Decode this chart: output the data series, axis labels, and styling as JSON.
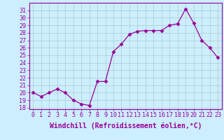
{
  "x": [
    0,
    1,
    2,
    3,
    4,
    5,
    6,
    7,
    8,
    9,
    10,
    11,
    12,
    13,
    14,
    15,
    16,
    17,
    18,
    19,
    20,
    21,
    22,
    23
  ],
  "y": [
    20.0,
    19.5,
    20.0,
    20.5,
    20.0,
    19.0,
    18.5,
    18.3,
    21.5,
    21.5,
    25.5,
    26.5,
    27.8,
    28.2,
    28.3,
    28.3,
    28.3,
    29.0,
    29.2,
    31.2,
    29.3,
    27.0,
    26.0,
    24.7
  ],
  "line_color": "#990099",
  "marker_style": "D",
  "marker_size": 2.5,
  "bg_color": "#cceeff",
  "grid_color": "#aacccc",
  "xlabel": "Windchill (Refroidissement éolien,°C)",
  "xlim": [
    -0.5,
    23.5
  ],
  "ylim": [
    17.8,
    32.0
  ],
  "yticks": [
    18,
    19,
    20,
    21,
    22,
    23,
    24,
    25,
    26,
    27,
    28,
    29,
    30,
    31
  ],
  "xtick_labels": [
    "0",
    "1",
    "2",
    "3",
    "4",
    "5",
    "6",
    "7",
    "8",
    "9",
    "10",
    "11",
    "12",
    "13",
    "14",
    "15",
    "16",
    "17",
    "18",
    "19",
    "20",
    "21",
    "22",
    "23"
  ],
  "tick_fontsize": 6,
  "xlabel_fontsize": 7
}
